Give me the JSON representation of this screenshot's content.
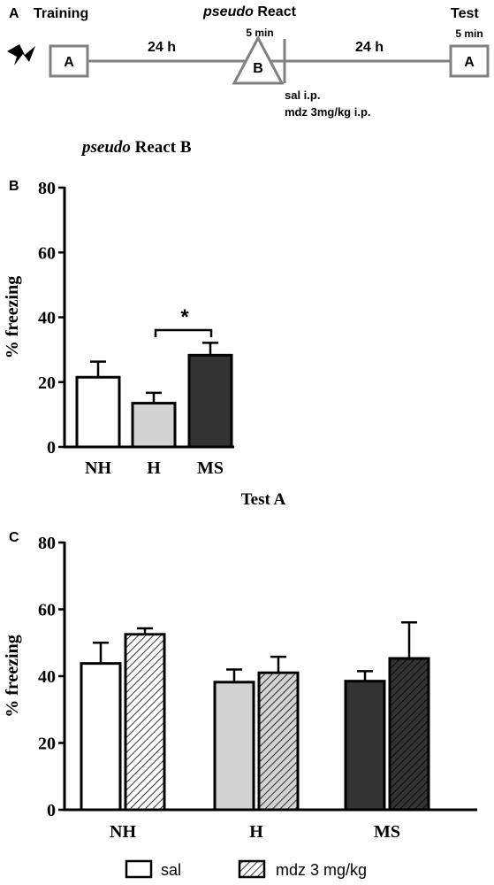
{
  "panel_a": {
    "letter": "A",
    "training_label": "Training",
    "react_label_italic": "pseudo",
    "react_label": "React",
    "test_label": "Test",
    "box_training": "A",
    "box_react": "B",
    "box_test": "A",
    "interval_1": "24 h",
    "interval_2": "24 h",
    "duration_react": "5 min",
    "duration_test": "5 min",
    "injection_line_1": "sal i.p.",
    "injection_line_2": "mdz 3mg/kg i.p.",
    "shock_icon": "lightning-bolt-icon"
  },
  "panel_b": {
    "letter": "B",
    "title_italic": "pseudo",
    "title_rest": "React B",
    "significance": "*"
  },
  "panel_c": {
    "letter": "C",
    "title": "Test A"
  },
  "legend": {
    "items": [
      {
        "label": "sal",
        "pattern": "solid-white"
      },
      {
        "label": "mdz 3 mg/kg",
        "pattern": "hatched"
      }
    ]
  },
  "colors": {
    "NH": "#ffffff",
    "H": "#d3d3d3",
    "MS": "#333333",
    "axis": "#000000",
    "timeline": "#808080"
  },
  "chart_data": [
    {
      "type": "bar",
      "panel": "B",
      "title": "pseudo React B",
      "ylabel": "% freezing",
      "xlabel": "",
      "categories": [
        "NH",
        "H",
        "MS"
      ],
      "values": [
        21.5,
        13.5,
        28.3
      ],
      "errors": [
        4.8,
        3.2,
        3.8
      ],
      "ylim": [
        0,
        80
      ],
      "yticks": [
        0,
        20,
        40,
        60,
        80
      ],
      "annotations": [
        {
          "from": "H",
          "to": "MS",
          "text": "*"
        }
      ],
      "grid": false
    },
    {
      "type": "bar",
      "panel": "C",
      "title": "Test A",
      "ylabel": "% freezing",
      "xlabel": "",
      "categories": [
        "NH",
        "H",
        "MS"
      ],
      "series": [
        {
          "name": "sal",
          "values": [
            43.8,
            38.2,
            38.5
          ],
          "errors": [
            6.2,
            3.8,
            3.0
          ]
        },
        {
          "name": "mdz 3 mg/kg",
          "values": [
            52.5,
            41.0,
            45.3
          ],
          "errors": [
            1.8,
            4.8,
            10.8
          ]
        }
      ],
      "ylim": [
        0,
        80
      ],
      "yticks": [
        0,
        20,
        40,
        60,
        80
      ],
      "legend": "bottom",
      "grid": false
    }
  ]
}
